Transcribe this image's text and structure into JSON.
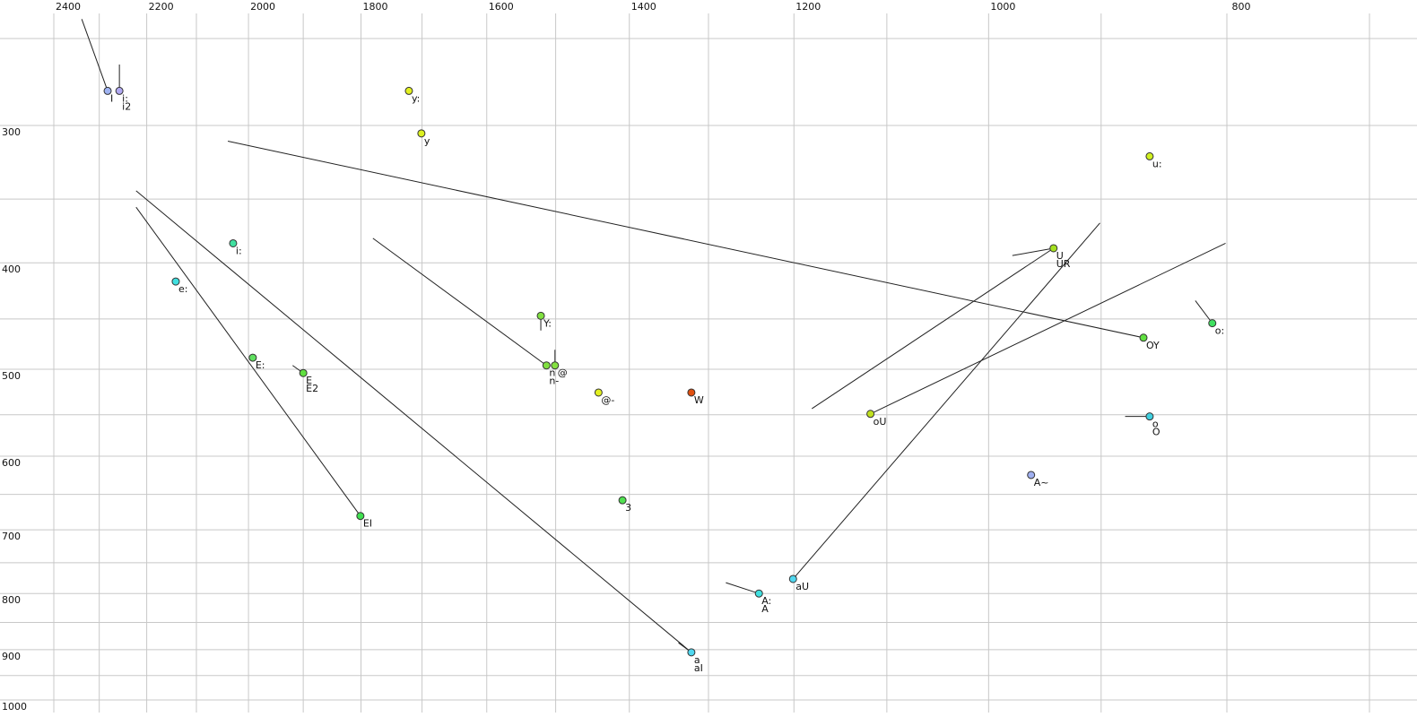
{
  "chart_data": {
    "type": "scatter",
    "xscale": "log",
    "yscale": "log",
    "grid": true,
    "xlim": [
      2400,
      700
    ],
    "ylim": [
      250,
      1000
    ],
    "xticks": [
      2400,
      2200,
      2000,
      1800,
      1600,
      1400,
      1200,
      1000,
      800
    ],
    "x_minor_ticks": [
      2300,
      2100,
      1900,
      1700,
      1500,
      1300,
      1100,
      900,
      700
    ],
    "yticks": [
      300,
      400,
      500,
      600,
      700,
      800,
      900,
      1000
    ],
    "y_minor_ticks": [
      250,
      350,
      450,
      550,
      650,
      750,
      850,
      950
    ],
    "points": [
      {
        "labels": [
          "I"
        ],
        "x": 2282,
        "y": 279,
        "color": "#9fb3f2",
        "glides": [
          [
            2338,
            240
          ]
        ]
      },
      {
        "labels": [
          "i:",
          "i2"
        ],
        "x": 2257,
        "y": 279,
        "color": "#b1a9f2",
        "glides": [
          [
            2257,
            264
          ]
        ]
      },
      {
        "labels": [
          "y:"
        ],
        "x": 1721,
        "y": 279,
        "color": "#e2f020",
        "glides": []
      },
      {
        "labels": [
          "y"
        ],
        "x": 1701,
        "y": 305,
        "color": "#dcf020",
        "glides": []
      },
      {
        "labels": [
          "u:"
        ],
        "x": 860,
        "y": 320,
        "color": "#d0f020",
        "glides": []
      },
      {
        "labels": [
          "i:"
        ],
        "x": 2029,
        "y": 384,
        "color": "#40e0a0",
        "glides": []
      },
      {
        "labels": [
          "e:"
        ],
        "x": 2141,
        "y": 416,
        "color": "#40e0e0",
        "glides": []
      },
      {
        "labels": [
          "U",
          "UR"
        ],
        "x": 941,
        "y": 388,
        "color": "#a4e020",
        "glides": [
          [
            978,
            394
          ],
          [
            1180,
            543
          ]
        ]
      },
      {
        "labels": [
          "Y:"
        ],
        "x": 1521,
        "y": 447,
        "color": "#80e040",
        "glides": [
          [
            1521,
            461
          ]
        ]
      },
      {
        "labels": [
          "n",
          "n-"
        ],
        "x": 1513,
        "y": 496,
        "color": "#80e040",
        "glides": [
          [
            1780,
            380
          ]
        ]
      },
      {
        "labels": [
          "@"
        ],
        "x": 1501,
        "y": 496,
        "color": "#84e040",
        "glides": [
          [
            1501,
            480
          ]
        ]
      },
      {
        "labels": [
          "OY"
        ],
        "x": 865,
        "y": 468,
        "color": "#60e040",
        "glides": [
          [
            2039,
            310
          ]
        ]
      },
      {
        "labels": [
          "o:"
        ],
        "x": 811,
        "y": 454,
        "color": "#40e060",
        "glides": [
          [
            824,
            433
          ]
        ]
      },
      {
        "labels": [
          "E:"
        ],
        "x": 1992,
        "y": 488,
        "color": "#60e060",
        "glides": []
      },
      {
        "labels": [
          "E",
          "E2"
        ],
        "x": 1900,
        "y": 504,
        "color": "#60e040",
        "glides": [
          [
            1919,
            496
          ]
        ]
      },
      {
        "labels": [
          "@-"
        ],
        "x": 1441,
        "y": 525,
        "color": "#e2f020",
        "glides": []
      },
      {
        "labels": [
          "W"
        ],
        "x": 1321,
        "y": 525,
        "color": "#e05010",
        "glides": []
      },
      {
        "labels": [
          "oU"
        ],
        "x": 1117,
        "y": 549,
        "color": "#c0e020",
        "glides": [
          [
            801,
            384
          ]
        ]
      },
      {
        "labels": [
          "o",
          "O"
        ],
        "x": 860,
        "y": 552,
        "color": "#40d0e0",
        "glides": [
          [
            880,
            552
          ]
        ]
      },
      {
        "labels": [
          "A~"
        ],
        "x": 961,
        "y": 624,
        "color": "#a0b0f0",
        "glides": []
      },
      {
        "labels": [
          "3"
        ],
        "x": 1409,
        "y": 658,
        "color": "#50e050",
        "glides": []
      },
      {
        "labels": [
          "EI"
        ],
        "x": 1801,
        "y": 680,
        "color": "#40e050",
        "glides": [
          [
            2222,
            356
          ]
        ]
      },
      {
        "labels": [
          "aU"
        ],
        "x": 1201,
        "y": 776,
        "color": "#50d8f0",
        "glides": [
          [
            901,
            368
          ]
        ]
      },
      {
        "labels": [
          "A:",
          "A"
        ],
        "x": 1240,
        "y": 800,
        "color": "#40e0e0",
        "glides": [
          [
            1279,
            782
          ]
        ]
      },
      {
        "labels": [
          "a",
          "aI"
        ],
        "x": 1321,
        "y": 905,
        "color": "#50d8f0",
        "glides": [
          [
            2222,
            344
          ],
          [
            1337,
            887
          ]
        ]
      }
    ]
  }
}
